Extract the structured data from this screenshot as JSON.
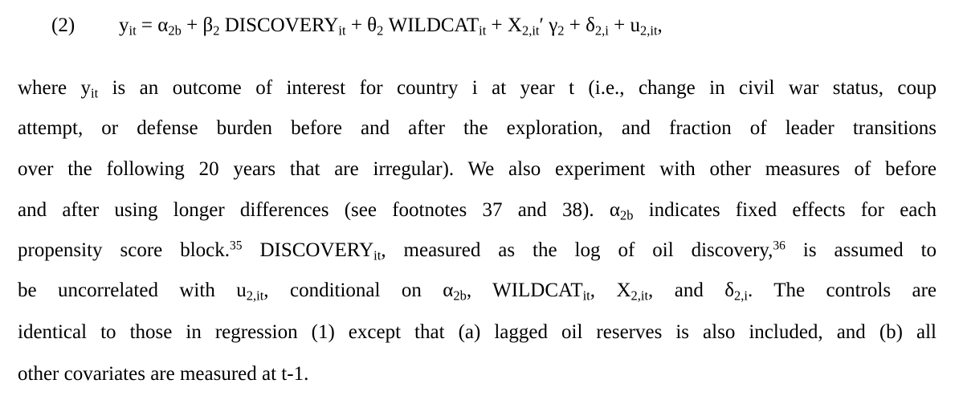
{
  "equation": {
    "label": "(2)",
    "y": "y",
    "it": "it",
    "eq_open": " = α",
    "sub_2b": "2b",
    "plus_beta": " + β",
    "sub_2": "2",
    "discovery": " DISCOVERY",
    "plus_theta": " + θ",
    "wildcat": " WILDCAT",
    "plus_x": " + X",
    "sub_2it": "2,it",
    "gamma_part": "′ γ",
    "plus_delta": " + δ",
    "sub_2i": "2,i",
    "plus_u": " + u",
    "end": ","
  },
  "paragraph": {
    "line1": {
      "a": "where y",
      "sub": "it",
      "b": " is an outcome of interest for country i at year t (i.e., change in civil war status, coup"
    },
    "line2": "attempt, or defense burden before and after the exploration, and fraction of leader transitions",
    "line3": "over the following 20 years that are irregular). We also experiment with other measures of before",
    "line4": {
      "a": "and after using longer differences (see footnotes 37 and 38). α",
      "sub": "2b",
      "b": " indicates fixed effects for each"
    },
    "line5": {
      "a": "propensity score block.",
      "fn35": "35",
      "b": " DISCOVERY",
      "sub": "it",
      "c": ", measured as the log of oil discovery,",
      "fn36": "36",
      "d": " is assumed to"
    },
    "line6": {
      "a": "be uncorrelated with u",
      "sub_u": "2,it",
      "b": ", conditional on α",
      "sub_a": "2b",
      "c": ", WILDCAT",
      "sub_w": "it",
      "d": ", X",
      "sub_x": "2,it",
      "e": ", and δ",
      "sub_d": "2,i",
      "f": ". The controls are"
    },
    "line7": "identical to those in regression (1) except that (a) lagged oil reserves is also included, and (b) all",
    "line8": "other covariates are measured at t-1."
  }
}
